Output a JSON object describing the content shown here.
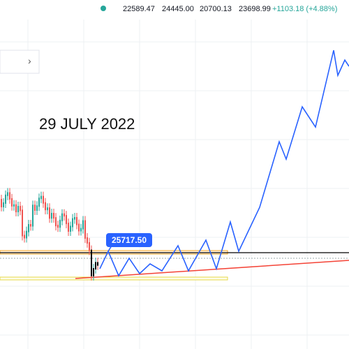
{
  "header": {
    "open": "22589.47",
    "high": "24445.00",
    "low": "20700.13",
    "close": "23698.99",
    "change": "+1103.18 (+4.88%)"
  },
  "panel": {
    "arrow": "›"
  },
  "annotation": "29 JULY 2022",
  "price_label": "25717.50"
}
